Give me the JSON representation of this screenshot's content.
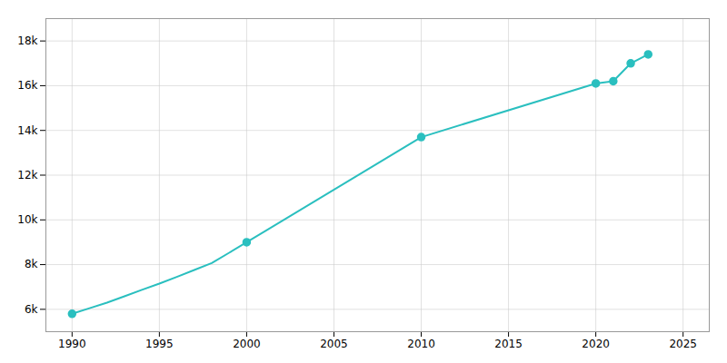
{
  "chart_data": {
    "type": "line",
    "x": [
      1990,
      1991,
      1992,
      1993,
      1994,
      1995,
      1996,
      1997,
      1998,
      1999,
      2000,
      2010,
      2020,
      2021,
      2022,
      2023
    ],
    "series": [
      {
        "type": "line",
        "color": "#2ABFBF",
        "values": [
          5800,
          6050,
          6300,
          6580,
          6870,
          7150,
          7450,
          7760,
          8070,
          8530,
          9000,
          13700,
          16100,
          16200,
          17000,
          17400
        ]
      },
      {
        "type": "scatter",
        "color": "#2ABFBF",
        "marker": "circle",
        "values": [
          5800,
          null,
          null,
          null,
          null,
          null,
          null,
          null,
          null,
          null,
          9000,
          13700,
          16100,
          16200,
          17000,
          17400
        ]
      }
    ],
    "xlim": [
      1988.5,
      2026.5
    ],
    "ylim": [
      5000,
      19000
    ],
    "xticks": [
      1990,
      1995,
      2000,
      2005,
      2010,
      2015,
      2020,
      2025
    ],
    "yticks": [
      {
        "value": 6000,
        "label": "6k"
      },
      {
        "value": 8000,
        "label": "8k"
      },
      {
        "value": 10000,
        "label": "10k"
      },
      {
        "value": 12000,
        "label": "12k"
      },
      {
        "value": 14000,
        "label": "14k"
      },
      {
        "value": 16000,
        "label": "16k"
      },
      {
        "value": 18000,
        "label": "18k"
      }
    ],
    "grid": true
  }
}
